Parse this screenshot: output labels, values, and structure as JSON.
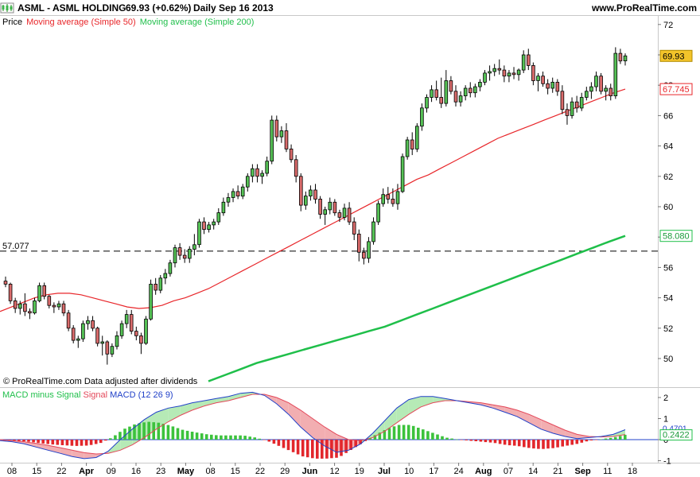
{
  "header": {
    "instrument": "ASML - ASML HOLDING",
    "price_change": "69.93 (+0.62%)",
    "period": "Daily  Sep 16 2013",
    "site": "www.ProRealTime.com"
  },
  "legend": {
    "price": "Price",
    "ma50": "Moving average (Simple 50)",
    "ma200": "Moving average (Simple 200)"
  },
  "macd_legend": {
    "hist": "MACD minus Signal",
    "signal": "Signal",
    "macd": "MACD (12 26 9)"
  },
  "credit": "© ProRealTime.com  Data adjusted after dividends",
  "colors": {
    "up": "#55c155",
    "down": "#d96b6b",
    "ma50": "#e8262a",
    "ma200": "#1fbf4a",
    "macd": "#2040c8",
    "signal": "#e3485a",
    "fill_pos": "#b6eab6",
    "fill_neg": "#f2aeb1"
  },
  "chart_data": [
    {
      "type": "candlestick",
      "title": "ASML - ASML HOLDING",
      "y_ticks": [
        50,
        52,
        54,
        56,
        58,
        60,
        62,
        64,
        66,
        68,
        70,
        72
      ],
      "ylim": [
        49,
        72.5
      ],
      "x_ticks": [
        "08",
        "15",
        "22",
        "Apr",
        "09",
        "16",
        "23",
        "May",
        "08",
        "15",
        "22",
        "29",
        "Jun",
        "12",
        "19",
        "Jul",
        "10",
        "17",
        "24",
        "Aug",
        "07",
        "14",
        "21",
        "Sep",
        "11",
        "18"
      ],
      "price_label": "69.93",
      "ma50_label": "67.745",
      "ma200_label": "58.080",
      "hline": {
        "value": 57.077,
        "label": "57.077"
      },
      "candles": [
        [
          55.1,
          55.4,
          54.7,
          54.9
        ],
        [
          54.9,
          55.0,
          53.6,
          53.8
        ],
        [
          53.8,
          54.0,
          53.0,
          53.3
        ],
        [
          53.3,
          53.8,
          52.9,
          53.6
        ],
        [
          53.6,
          54.3,
          52.8,
          53.1
        ],
        [
          53.1,
          53.3,
          52.6,
          53.0
        ],
        [
          53.0,
          54.0,
          52.9,
          53.8
        ],
        [
          53.8,
          55.0,
          53.7,
          54.8
        ],
        [
          54.8,
          55.0,
          53.9,
          54.1
        ],
        [
          54.1,
          54.2,
          53.3,
          53.5
        ],
        [
          53.5,
          53.7,
          53.0,
          53.4
        ],
        [
          53.4,
          53.8,
          53.2,
          53.6
        ],
        [
          53.6,
          53.8,
          52.8,
          53.0
        ],
        [
          53.0,
          53.2,
          51.8,
          52.0
        ],
        [
          52.0,
          52.2,
          51.0,
          51.2
        ],
        [
          51.2,
          51.5,
          50.7,
          51.3
        ],
        [
          51.3,
          52.5,
          51.1,
          52.3
        ],
        [
          52.3,
          52.8,
          51.9,
          52.5
        ],
        [
          52.5,
          52.8,
          51.8,
          52.0
        ],
        [
          52.0,
          52.1,
          50.8,
          51.0
        ],
        [
          51.0,
          51.5,
          50.2,
          51.1
        ],
        [
          51.1,
          51.2,
          49.6,
          50.3
        ],
        [
          50.3,
          51.0,
          50.1,
          50.8
        ],
        [
          50.8,
          51.8,
          50.6,
          51.5
        ],
        [
          51.5,
          52.5,
          51.3,
          52.3
        ],
        [
          52.3,
          53.2,
          52.0,
          52.9
        ],
        [
          52.9,
          53.2,
          51.6,
          51.8
        ],
        [
          51.8,
          52.1,
          51.2,
          51.5
        ],
        [
          51.5,
          51.7,
          50.3,
          51.0
        ],
        [
          51.0,
          52.8,
          50.9,
          52.6
        ],
        [
          52.6,
          55.2,
          52.5,
          54.9
        ],
        [
          54.9,
          55.3,
          54.2,
          54.5
        ],
        [
          54.5,
          55.5,
          54.3,
          55.3
        ],
        [
          55.3,
          55.9,
          54.9,
          55.6
        ],
        [
          55.6,
          56.5,
          55.4,
          56.3
        ],
        [
          56.3,
          57.5,
          56.0,
          57.3
        ],
        [
          57.3,
          57.6,
          56.5,
          56.8
        ],
        [
          56.8,
          57.2,
          56.3,
          56.6
        ],
        [
          56.6,
          57.4,
          56.3,
          57.2
        ],
        [
          57.2,
          58.2,
          56.8,
          57.5
        ],
        [
          57.5,
          59.2,
          57.3,
          59.0
        ],
        [
          59.0,
          59.3,
          58.2,
          58.5
        ],
        [
          58.5,
          59.0,
          58.3,
          58.8
        ],
        [
          58.8,
          59.2,
          58.5,
          59.0
        ],
        [
          59.0,
          59.9,
          58.8,
          59.6
        ],
        [
          59.6,
          60.6,
          59.4,
          60.3
        ],
        [
          60.3,
          60.9,
          60.0,
          60.6
        ],
        [
          60.6,
          61.2,
          60.3,
          61.0
        ],
        [
          61.0,
          61.4,
          60.5,
          60.7
        ],
        [
          60.7,
          61.5,
          60.5,
          61.3
        ],
        [
          61.3,
          62.2,
          61.0,
          62.0
        ],
        [
          62.0,
          62.8,
          61.6,
          62.5
        ],
        [
          62.5,
          62.8,
          61.6,
          62.0
        ],
        [
          62.0,
          62.4,
          61.5,
          62.2
        ],
        [
          62.2,
          63.3,
          62.0,
          63.0
        ],
        [
          63.0,
          66.0,
          62.8,
          65.7
        ],
        [
          65.7,
          66.0,
          64.3,
          64.6
        ],
        [
          64.6,
          65.3,
          64.2,
          65.0
        ],
        [
          65.0,
          65.5,
          63.6,
          63.8
        ],
        [
          63.8,
          64.1,
          62.9,
          63.1
        ],
        [
          63.1,
          63.4,
          61.6,
          62.0
        ],
        [
          62.0,
          62.2,
          59.7,
          60.1
        ],
        [
          60.1,
          61.0,
          59.8,
          60.7
        ],
        [
          60.7,
          61.4,
          60.4,
          61.1
        ],
        [
          61.1,
          61.5,
          60.2,
          60.5
        ],
        [
          60.5,
          60.7,
          59.2,
          59.5
        ],
        [
          59.5,
          60.0,
          58.8,
          59.8
        ],
        [
          59.8,
          60.6,
          59.5,
          60.3
        ],
        [
          60.3,
          60.5,
          59.4,
          59.6
        ],
        [
          59.6,
          59.8,
          59.0,
          59.3
        ],
        [
          59.3,
          60.2,
          59.1,
          59.9
        ],
        [
          59.9,
          60.3,
          58.8,
          59.0
        ],
        [
          59.0,
          59.3,
          57.8,
          58.2
        ],
        [
          58.2,
          58.5,
          56.4,
          57.0
        ],
        [
          57.0,
          57.3,
          56.2,
          56.6
        ],
        [
          56.6,
          58.0,
          56.3,
          57.7
        ],
        [
          57.7,
          59.3,
          57.5,
          59.0
        ],
        [
          59.0,
          60.4,
          58.8,
          60.2
        ],
        [
          60.2,
          61.2,
          60.0,
          60.8
        ],
        [
          60.8,
          61.3,
          60.2,
          60.5
        ],
        [
          60.5,
          61.2,
          60.0,
          60.2
        ],
        [
          60.2,
          61.5,
          59.8,
          61.0
        ],
        [
          61.0,
          63.5,
          60.9,
          63.3
        ],
        [
          63.3,
          64.6,
          63.1,
          64.4
        ],
        [
          64.4,
          64.9,
          63.4,
          63.8
        ],
        [
          63.8,
          65.5,
          63.6,
          65.3
        ],
        [
          65.3,
          66.8,
          65.0,
          66.5
        ],
        [
          66.5,
          67.4,
          66.2,
          67.2
        ],
        [
          67.2,
          68.0,
          66.9,
          67.7
        ],
        [
          67.7,
          68.3,
          67.0,
          67.2
        ],
        [
          67.2,
          68.5,
          66.5,
          66.8
        ],
        [
          66.8,
          69.0,
          66.6,
          68.3
        ],
        [
          68.3,
          68.6,
          67.4,
          67.6
        ],
        [
          67.6,
          68.0,
          66.6,
          66.9
        ],
        [
          66.9,
          67.6,
          66.6,
          67.3
        ],
        [
          67.3,
          68.0,
          67.0,
          67.8
        ],
        [
          67.8,
          68.2,
          67.2,
          67.5
        ],
        [
          67.5,
          68.1,
          67.2,
          67.9
        ],
        [
          67.9,
          68.4,
          67.6,
          68.2
        ],
        [
          68.2,
          69.0,
          68.0,
          68.8
        ],
        [
          68.8,
          69.3,
          68.3,
          68.9
        ],
        [
          68.9,
          69.4,
          68.6,
          69.1
        ],
        [
          69.1,
          69.7,
          68.7,
          69.0
        ],
        [
          69.0,
          69.3,
          68.2,
          68.6
        ],
        [
          68.6,
          69.0,
          68.2,
          68.8
        ],
        [
          68.8,
          69.2,
          68.4,
          68.7
        ],
        [
          68.7,
          69.1,
          68.3,
          69.0
        ],
        [
          69.0,
          70.3,
          68.8,
          70.0
        ],
        [
          70.0,
          70.4,
          69.0,
          69.3
        ],
        [
          69.3,
          69.5,
          68.0,
          68.3
        ],
        [
          68.3,
          68.8,
          67.6,
          68.6
        ],
        [
          68.6,
          68.9,
          67.9,
          68.1
        ],
        [
          68.1,
          68.4,
          67.4,
          67.8
        ],
        [
          67.8,
          68.5,
          67.5,
          68.2
        ],
        [
          68.2,
          68.4,
          67.3,
          67.6
        ],
        [
          67.6,
          68.0,
          66.1,
          66.4
        ],
        [
          66.4,
          66.8,
          65.4,
          66.0
        ],
        [
          66.0,
          67.2,
          65.8,
          66.9
        ],
        [
          66.9,
          67.3,
          66.2,
          66.5
        ],
        [
          66.5,
          67.5,
          66.3,
          67.2
        ],
        [
          67.2,
          67.9,
          67.0,
          67.6
        ],
        [
          67.6,
          68.2,
          67.1,
          67.9
        ],
        [
          67.9,
          68.9,
          67.6,
          68.6
        ],
        [
          68.6,
          68.8,
          67.4,
          67.6
        ],
        [
          67.6,
          68.0,
          67.0,
          67.8
        ],
        [
          67.8,
          68.1,
          67.0,
          67.3
        ],
        [
          67.3,
          70.5,
          67.1,
          70.1
        ],
        [
          70.1,
          70.4,
          69.4,
          69.6
        ],
        [
          69.6,
          70.1,
          69.3,
          69.93
        ]
      ],
      "ma50": [
        53.1,
        53.4,
        53.7,
        54.0,
        54.2,
        54.3,
        54.3,
        54.2,
        54.0,
        53.8,
        53.6,
        53.4,
        53.3,
        53.35,
        53.5,
        53.8,
        54.0,
        54.3,
        54.6,
        55.0,
        55.4,
        55.8,
        56.2,
        56.6,
        57.0,
        57.4,
        57.8,
        58.2,
        58.6,
        59.0,
        59.4,
        59.8,
        60.2,
        60.6,
        61.0,
        61.4,
        61.8,
        62.1,
        62.5,
        62.9,
        63.3,
        63.7,
        64.1,
        64.5,
        64.8,
        65.1,
        65.4,
        65.7,
        66.0,
        66.3,
        66.6,
        66.9,
        67.2,
        67.5,
        67.745
      ],
      "ma200": [
        48.5,
        48.9,
        49.3,
        49.7,
        50.0,
        50.3,
        50.6,
        50.9,
        51.2,
        51.5,
        51.8,
        52.1,
        52.5,
        52.9,
        53.3,
        53.7,
        54.1,
        54.5,
        54.9,
        55.3,
        55.7,
        56.1,
        56.5,
        56.9,
        57.3,
        57.7,
        58.08
      ]
    },
    {
      "type": "bar",
      "title": "MACD (12 26 9)",
      "y_ticks": [
        -1,
        0,
        1,
        2
      ],
      "ylim": [
        -1.3,
        2.4
      ],
      "macd_label": "0.2422",
      "macd_label_partial": "0.4701",
      "macd": [
        -0.05,
        -0.1,
        -0.2,
        -0.35,
        -0.5,
        -0.65,
        -0.8,
        -0.9,
        -0.85,
        -0.55,
        0.0,
        0.5,
        0.95,
        1.3,
        1.5,
        1.6,
        1.75,
        1.85,
        1.95,
        2.05,
        2.2,
        2.25,
        2.1,
        1.7,
        1.2,
        0.6,
        0.1,
        -0.3,
        -0.6,
        -0.5,
        -0.2,
        0.3,
        0.9,
        1.5,
        1.9,
        2.05,
        2.05,
        1.95,
        1.85,
        1.75,
        1.65,
        1.5,
        1.3,
        1.1,
        0.8,
        0.5,
        0.3,
        0.15,
        0.05,
        0.1,
        0.15,
        0.25,
        0.47
      ],
      "signal": [
        0.0,
        -0.05,
        -0.1,
        -0.18,
        -0.27,
        -0.38,
        -0.5,
        -0.62,
        -0.68,
        -0.65,
        -0.5,
        -0.25,
        0.1,
        0.5,
        0.85,
        1.15,
        1.4,
        1.6,
        1.75,
        1.85,
        2.0,
        2.15,
        2.15,
        2.0,
        1.75,
        1.4,
        1.0,
        0.6,
        0.25,
        0.0,
        -0.05,
        0.1,
        0.4,
        0.8,
        1.2,
        1.55,
        1.75,
        1.85,
        1.85,
        1.8,
        1.75,
        1.65,
        1.55,
        1.4,
        1.2,
        0.95,
        0.7,
        0.45,
        0.25,
        0.15,
        0.13,
        0.15,
        0.24
      ],
      "hist": [
        -0.05,
        -0.05,
        -0.1,
        -0.17,
        -0.23,
        -0.27,
        -0.3,
        -0.28,
        -0.17,
        0.1,
        0.5,
        0.75,
        0.85,
        0.8,
        0.65,
        0.45,
        0.35,
        0.25,
        0.2,
        0.2,
        0.2,
        0.1,
        -0.05,
        -0.3,
        -0.55,
        -0.8,
        -0.9,
        -0.9,
        -0.85,
        -0.5,
        -0.15,
        0.2,
        0.5,
        0.7,
        0.7,
        0.5,
        0.3,
        0.1,
        0.0,
        -0.05,
        -0.1,
        -0.15,
        -0.25,
        -0.3,
        -0.4,
        -0.45,
        -0.4,
        -0.3,
        -0.2,
        -0.05,
        0.02,
        0.1,
        0.23
      ]
    }
  ]
}
